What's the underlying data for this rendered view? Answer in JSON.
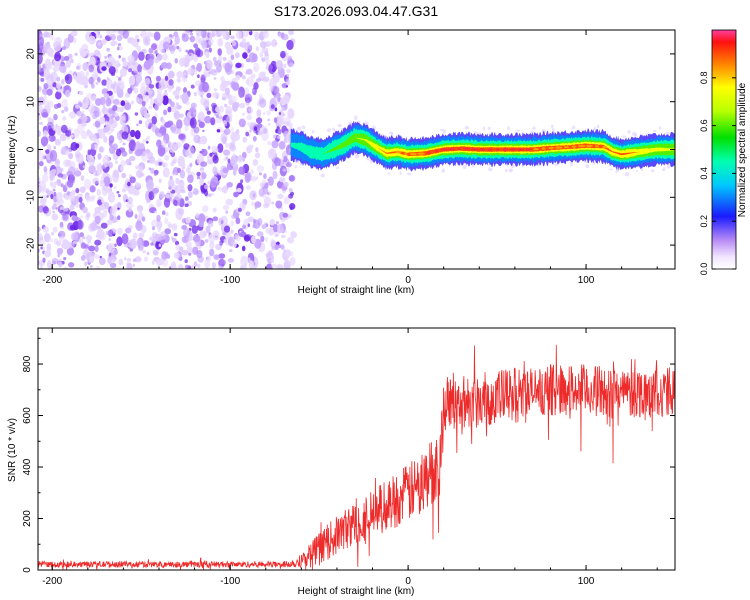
{
  "figure": {
    "title": "S173.2026.093.04.47.G31"
  },
  "chart_data": [
    {
      "type": "heatmap",
      "title": "S173.2026.093.04.47.G31",
      "xlabel": "Height of straight line (km)",
      "ylabel": "Frequency (Hz)",
      "xlim": [
        -208,
        150
      ],
      "ylim": [
        -25,
        25
      ],
      "xticks": [
        -200,
        -100,
        0,
        100
      ],
      "yticks": [
        -20,
        -10,
        0,
        10,
        20
      ],
      "noise_region_x": [
        -208,
        -66
      ],
      "signal_track": {
        "x": [
          -66,
          -60,
          -55,
          -48,
          -42,
          -36,
          -30,
          -24,
          -18,
          -12,
          -6,
          0,
          10,
          20,
          30,
          40,
          50,
          60,
          70,
          80,
          90,
          100,
          110,
          115,
          120,
          130,
          140,
          150
        ],
        "frequency": [
          1,
          0.5,
          -0.5,
          -1,
          0,
          1,
          2.5,
          2,
          0.5,
          -0.8,
          -0.5,
          -1,
          -0.8,
          0,
          0.2,
          0,
          0,
          0,
          0,
          0.3,
          0.5,
          0.8,
          0.6,
          -0.5,
          -1,
          -0.5,
          0,
          0
        ],
        "peak_amplitude": [
          0.3,
          0.35,
          0.4,
          0.4,
          0.45,
          0.5,
          0.55,
          0.6,
          0.7,
          0.75,
          0.8,
          0.85,
          0.9,
          0.95,
          0.95,
          0.95,
          0.95,
          0.92,
          0.9,
          0.9,
          0.88,
          0.9,
          0.85,
          0.75,
          0.8,
          0.7,
          0.65,
          0.6
        ]
      },
      "colorbar": {
        "label": "Normalized spectral amplitude",
        "range": [
          0,
          1
        ],
        "ticks": [
          "0.0",
          "0.2",
          "0.4",
          "0.6",
          "0.8"
        ]
      }
    },
    {
      "type": "line",
      "xlabel": "Height of straight line (km)",
      "ylabel": "SNR (10 * v/v)",
      "xlim": [
        -208,
        150
      ],
      "ylim": [
        0,
        940
      ],
      "xticks": [
        -200,
        -100,
        0,
        100
      ],
      "yticks": [
        0,
        200,
        400,
        600,
        800
      ],
      "series": [
        {
          "name": "SNR",
          "color": "#ee2b2b",
          "x": [
            -208,
            -150,
            -100,
            -70,
            -62,
            -55,
            -45,
            -35,
            -25,
            -15,
            -5,
            5,
            12,
            18,
            20,
            30,
            40,
            50,
            60,
            70,
            80,
            90,
            100,
            110,
            120,
            130,
            140,
            150
          ],
          "mean": [
            22,
            22,
            22,
            22,
            30,
            60,
            110,
            160,
            200,
            240,
            280,
            320,
            370,
            430,
            640,
            650,
            660,
            670,
            680,
            690,
            700,
            700,
            700,
            690,
            690,
            690,
            690,
            690
          ],
          "spread": [
            12,
            12,
            12,
            12,
            20,
            50,
            70,
            80,
            90,
            100,
            110,
            120,
            130,
            140,
            100,
            110,
            110,
            110,
            110,
            100,
            100,
            100,
            100,
            100,
            100,
            100,
            100,
            100
          ]
        }
      ]
    }
  ]
}
